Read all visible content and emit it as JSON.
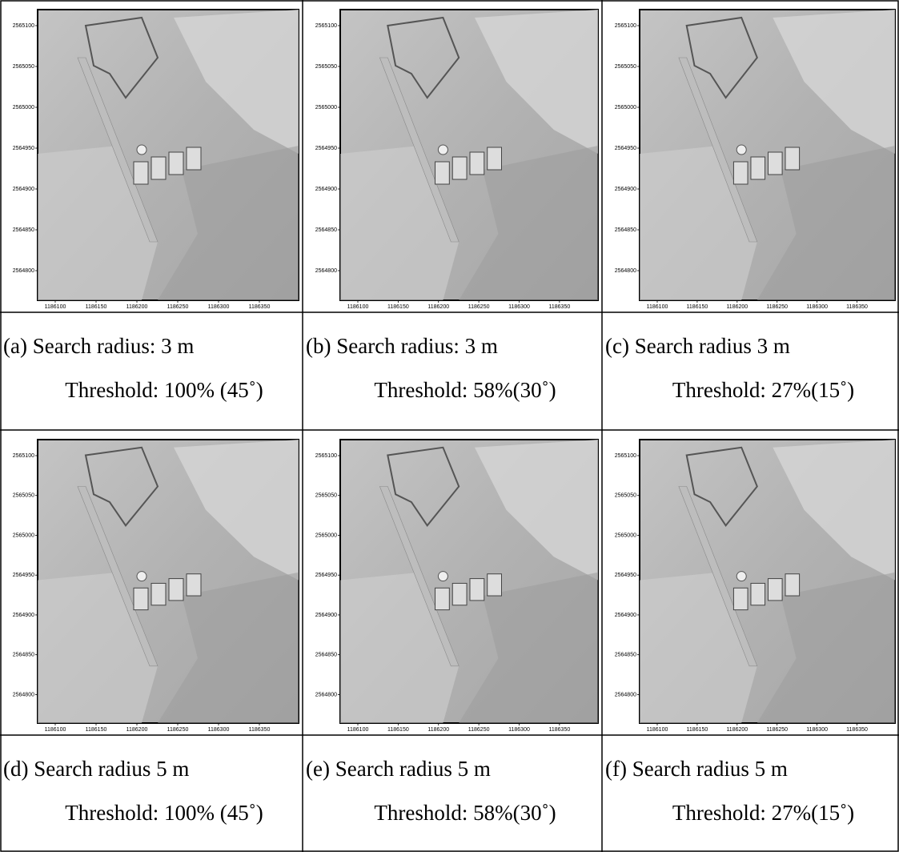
{
  "axes": {
    "y_ticks": [
      2565100,
      2565050,
      2565000,
      2564950,
      2564900,
      2564850,
      2564800
    ],
    "x_ticks": [
      1186100,
      1186150,
      1186200,
      1186250,
      1186300,
      1186350
    ]
  },
  "panels": [
    {
      "label": "(a) Search radius: 3 m",
      "threshold": "Threshold: 100% (45˚)"
    },
    {
      "label": "(b) Search radius: 3 m",
      "threshold": "Threshold: 58%(30˚)"
    },
    {
      "label": "(c) Search radius 3 m",
      "threshold": "Threshold: 27%(15˚)"
    },
    {
      "label": "(d) Search radius 5 m",
      "threshold": "Threshold: 100% (45˚)"
    },
    {
      "label": "(e) Search radius 5 m",
      "threshold": "Threshold: 58%(30˚)"
    },
    {
      "label": "(f) Search radius 5 m",
      "threshold": "Threshold: 27%(15˚)"
    }
  ]
}
